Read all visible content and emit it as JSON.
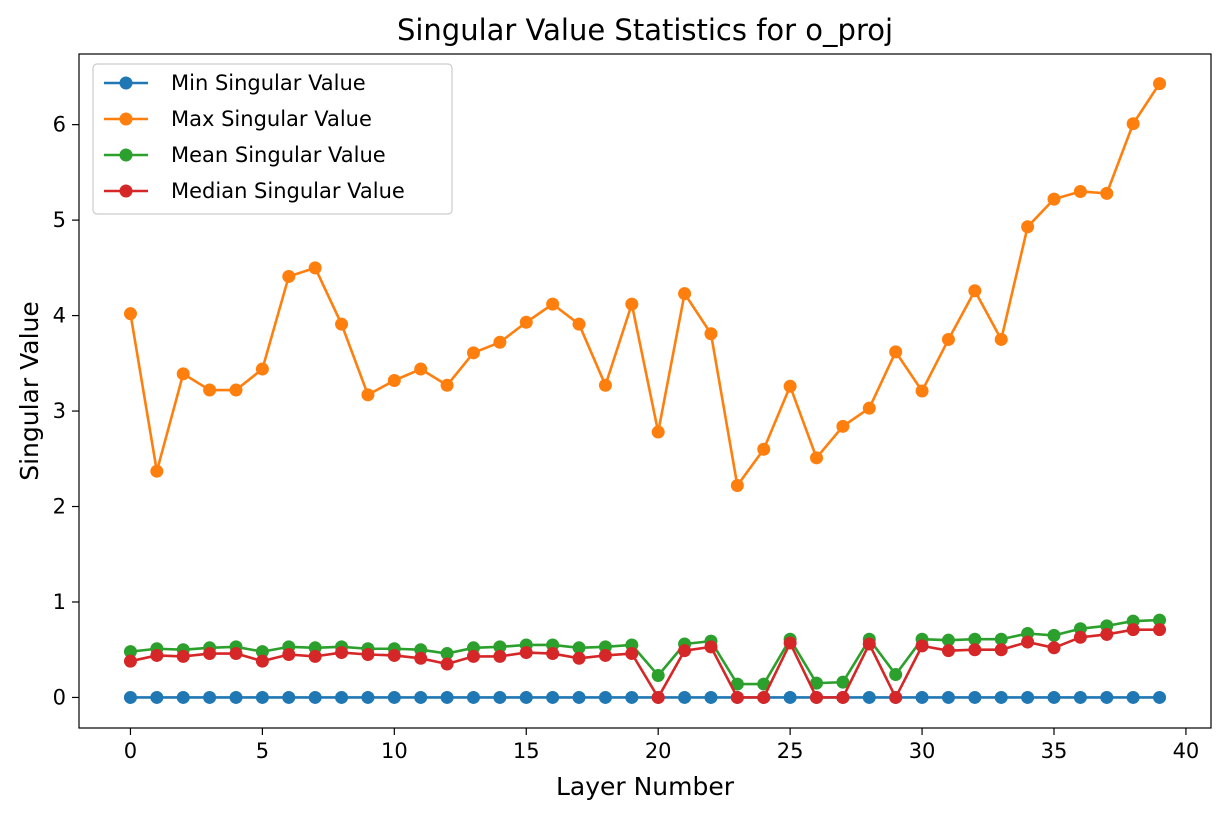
{
  "chart_data": {
    "type": "line",
    "title": "Singular Value Statistics for o_proj",
    "xlabel": "Layer Number",
    "ylabel": "Singular Value",
    "xlim": [
      -1.95,
      40.95
    ],
    "ylim": [
      -0.32,
      6.74
    ],
    "xticks": [
      0,
      5,
      10,
      15,
      20,
      25,
      30,
      35,
      40
    ],
    "yticks": [
      0,
      1,
      2,
      3,
      4,
      5,
      6
    ],
    "grid": false,
    "legend_position": "top-left",
    "x": [
      0,
      1,
      2,
      3,
      4,
      5,
      6,
      7,
      8,
      9,
      10,
      11,
      12,
      13,
      14,
      15,
      16,
      17,
      18,
      19,
      20,
      21,
      22,
      23,
      24,
      25,
      26,
      27,
      28,
      29,
      30,
      31,
      32,
      33,
      34,
      35,
      36,
      37,
      38,
      39
    ],
    "series": [
      {
        "name": "Min Singular Value",
        "color": "#1f77b4",
        "values": [
          0,
          0,
          0,
          0,
          0,
          0,
          0,
          0,
          0,
          0,
          0,
          0,
          0,
          0,
          0,
          0,
          0,
          0,
          0,
          0,
          0,
          0,
          0,
          0,
          0,
          0,
          0,
          0,
          0,
          0,
          0,
          0,
          0,
          0,
          0,
          0,
          0,
          0,
          0,
          0
        ]
      },
      {
        "name": "Max Singular Value",
        "color": "#ff7f0e",
        "values": [
          4.02,
          2.37,
          3.39,
          3.22,
          3.22,
          3.44,
          4.41,
          4.5,
          3.91,
          3.17,
          3.32,
          3.44,
          3.27,
          3.61,
          3.72,
          3.93,
          4.12,
          3.91,
          3.27,
          4.12,
          2.78,
          4.23,
          3.81,
          2.22,
          2.6,
          3.26,
          2.51,
          2.84,
          3.03,
          3.62,
          3.21,
          3.75,
          4.26,
          3.75,
          4.93,
          5.22,
          5.3,
          5.28,
          6.01,
          6.43
        ]
      },
      {
        "name": "Mean Singular Value",
        "color": "#2ca02c",
        "values": [
          0.48,
          0.51,
          0.5,
          0.52,
          0.53,
          0.48,
          0.53,
          0.52,
          0.53,
          0.51,
          0.51,
          0.5,
          0.46,
          0.52,
          0.53,
          0.55,
          0.55,
          0.52,
          0.53,
          0.55,
          0.23,
          0.56,
          0.59,
          0.14,
          0.14,
          0.61,
          0.15,
          0.16,
          0.61,
          0.24,
          0.61,
          0.6,
          0.61,
          0.61,
          0.67,
          0.65,
          0.72,
          0.75,
          0.8,
          0.81
        ]
      },
      {
        "name": "Median Singular Value",
        "color": "#d62728",
        "values": [
          0.38,
          0.44,
          0.43,
          0.46,
          0.46,
          0.38,
          0.45,
          0.43,
          0.47,
          0.45,
          0.44,
          0.41,
          0.35,
          0.43,
          0.43,
          0.47,
          0.46,
          0.41,
          0.44,
          0.46,
          0.0,
          0.49,
          0.53,
          0.0,
          0.0,
          0.57,
          0.0,
          0.0,
          0.56,
          0.0,
          0.54,
          0.49,
          0.5,
          0.5,
          0.58,
          0.52,
          0.63,
          0.66,
          0.71,
          0.71
        ]
      }
    ]
  }
}
